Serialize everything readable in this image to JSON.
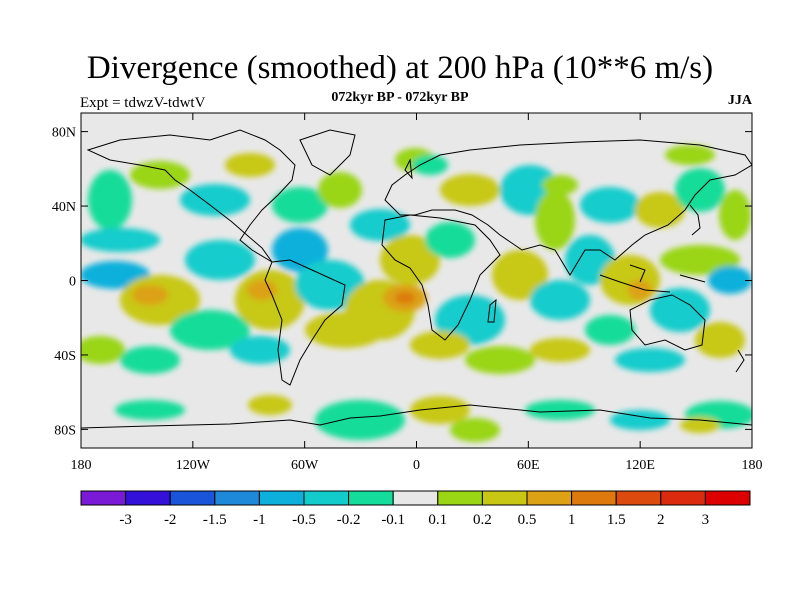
{
  "title": "Divergence (smoothed) at 200 hPa (10**6 m/s)",
  "experiment": "Expt = tdwzV-tdwtV",
  "period": "072kyr BP - 072kyr BP",
  "season": "JJA",
  "map": {
    "lat_ticks": [
      "80N",
      "40N",
      "0",
      "40S",
      "80S"
    ],
    "lon_ticks": [
      "180",
      "120W",
      "60W",
      "0",
      "60E",
      "120E",
      "180"
    ],
    "background_color": "#e8e8e8"
  },
  "colorbar": {
    "labels": [
      "-3",
      "-2",
      "-1.5",
      "-1",
      "-0.5",
      "-0.2",
      "-0.1",
      "0.1",
      "0.2",
      "0.5",
      "1",
      "1.5",
      "2",
      "3"
    ],
    "colors": [
      "#7a1ad6",
      "#3311d9",
      "#1a55d9",
      "#1e88d9",
      "#0db0db",
      "#12cccc",
      "#14dc9a",
      "#e8e8e8",
      "#9ad614",
      "#c8c814",
      "#dca114",
      "#dc7a0e",
      "#dc4a0e",
      "#dc2a0e",
      "#dc0000"
    ]
  }
}
